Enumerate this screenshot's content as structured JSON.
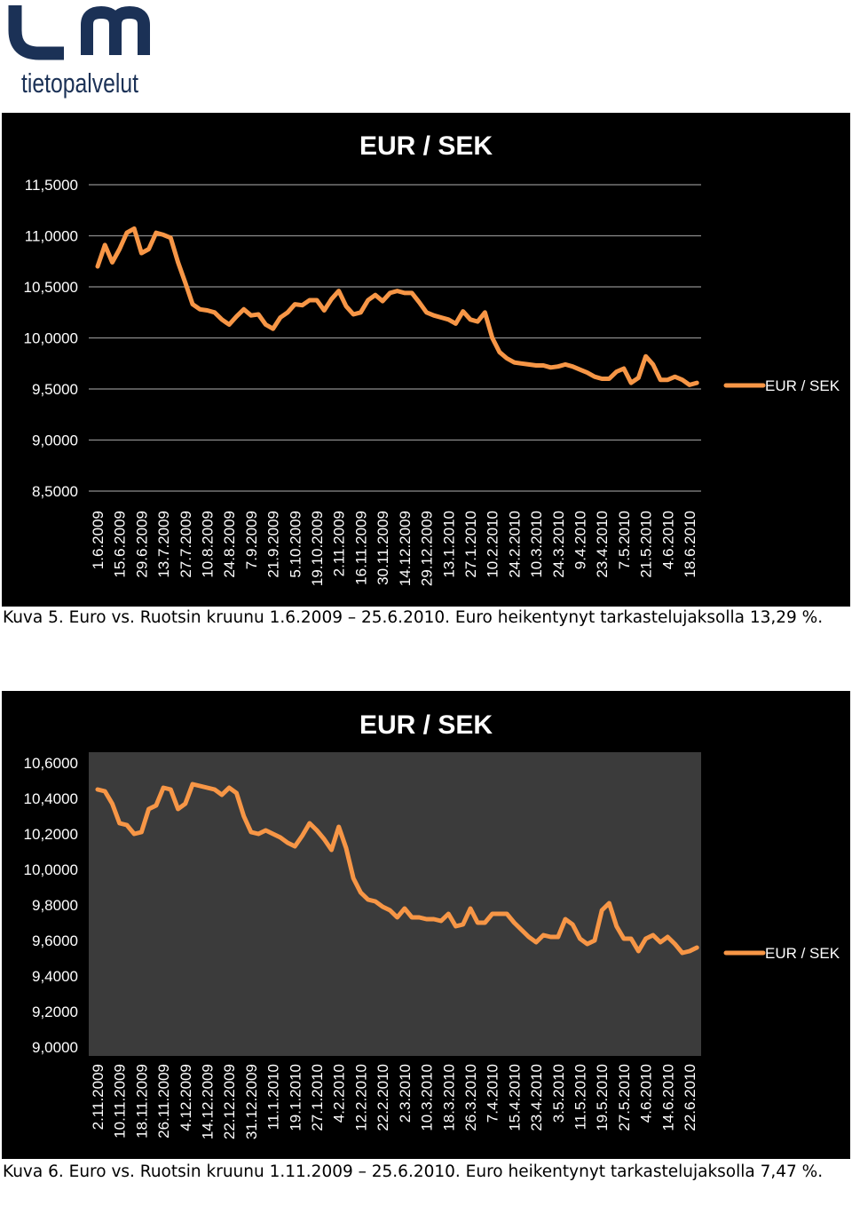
{
  "logo": {
    "text": "tietopalvelut"
  },
  "captions": [
    "Kuva 5. Euro vs. Ruotsin kruunu 1.6.2009 – 25.6.2010. Euro heikentynyt tarkastelujaksolla 13,29 %.",
    "Kuva 6. Euro vs. Ruotsin kruunu 1.11.2009 – 25.6.2010. Euro heikentynyt tarkastelujaksolla 7,47 %."
  ],
  "chart_data": [
    {
      "type": "line",
      "title": "EUR / SEK",
      "grid": true,
      "legend": "right",
      "plot_color": "#000000",
      "categories": [
        "1.6.2009",
        null,
        null,
        "15.6.2009",
        null,
        null,
        "29.6.2009",
        null,
        null,
        "13.7.2009",
        null,
        null,
        "27.7.2009",
        null,
        null,
        "10.8.2009",
        null,
        null,
        "24.8.2009",
        null,
        null,
        "7.9.2009",
        null,
        null,
        "21.9.2009",
        null,
        null,
        "5.10.2009",
        null,
        null,
        "19.10.2009",
        null,
        null,
        "2.11.2009",
        null,
        null,
        "16.11.2009",
        null,
        null,
        "30.11.2009",
        null,
        null,
        "14.12.2009",
        null,
        null,
        "29.12.2009",
        null,
        null,
        "13.1.2010",
        null,
        null,
        "27.1.2010",
        null,
        null,
        "10.2.2010",
        null,
        null,
        "24.2.2010",
        null,
        null,
        "10.3.2010",
        null,
        null,
        "24.3.2010",
        null,
        null,
        "9.4.2010",
        null,
        null,
        "23.4.2010",
        null,
        null,
        "7.5.2010",
        null,
        null,
        "21.5.2010",
        null,
        null,
        "4.6.2010",
        null,
        null,
        "18.6.2010",
        null
      ],
      "series": [
        {
          "name": "EUR / SEK",
          "color": "#f79646",
          "values": [
            10.7,
            10.91,
            10.74,
            10.87,
            11.03,
            11.07,
            10.83,
            10.87,
            11.03,
            11.01,
            10.98,
            10.74,
            10.54,
            10.33,
            10.28,
            10.27,
            10.25,
            10.18,
            10.13,
            10.21,
            10.28,
            10.22,
            10.23,
            10.13,
            10.09,
            10.2,
            10.25,
            10.33,
            10.32,
            10.37,
            10.37,
            10.27,
            10.38,
            10.46,
            10.31,
            10.23,
            10.25,
            10.37,
            10.42,
            10.36,
            10.44,
            10.46,
            10.44,
            10.44,
            10.35,
            10.25,
            10.22,
            10.2,
            10.18,
            10.14,
            10.26,
            10.18,
            10.16,
            10.25,
            10.0,
            9.86,
            9.8,
            9.76,
            9.75,
            9.74,
            9.73,
            9.73,
            9.71,
            9.72,
            9.74,
            9.72,
            9.69,
            9.66,
            9.62,
            9.6,
            9.6,
            9.67,
            9.7,
            9.56,
            9.61,
            9.82,
            9.74,
            9.59,
            9.59,
            9.62,
            9.59,
            9.54,
            9.56
          ]
        }
      ],
      "ylim": [
        8.5,
        11.5
      ],
      "yticks": [
        {
          "value": 8.5,
          "label": "8,5000"
        },
        {
          "value": 9,
          "label": "9,0000"
        },
        {
          "value": 9.5,
          "label": "9,5000"
        },
        {
          "value": 10,
          "label": "10,0000"
        },
        {
          "value": 10.5,
          "label": "10,5000"
        },
        {
          "value": 11,
          "label": "11,0000"
        },
        {
          "value": 11.5,
          "label": "11,5000"
        }
      ]
    },
    {
      "type": "line",
      "title": "EUR / SEK",
      "grid": false,
      "legend": "right",
      "plot_color": "#3b3b3b",
      "categories": [
        "2.11.2009",
        null,
        null,
        "10.11.2009",
        null,
        null,
        "18.11.2009",
        null,
        null,
        "26.11.2009",
        null,
        null,
        "4.12.2009",
        null,
        null,
        "14.12.2009",
        null,
        null,
        "22.12.2009",
        null,
        null,
        "31.12.2009",
        null,
        null,
        "11.1.2010",
        null,
        null,
        "19.1.2010",
        null,
        null,
        "27.1.2010",
        null,
        null,
        "4.2.2010",
        null,
        null,
        "12.2.2010",
        null,
        null,
        "22.2.2010",
        null,
        null,
        "2.3.2010",
        null,
        null,
        "10.3.2010",
        null,
        null,
        "18.3.2010",
        null,
        null,
        "26.3.2010",
        null,
        null,
        "7.4.2010",
        null,
        null,
        "15.4.2010",
        null,
        null,
        "23.4.2010",
        null,
        null,
        "3.5.2010",
        null,
        null,
        "11.5.2010",
        null,
        null,
        "19.5.2010",
        null,
        null,
        "27.5.2010",
        null,
        null,
        "4.6.2010",
        null,
        null,
        "14.6.2010",
        null,
        null,
        "22.6.2010",
        null
      ],
      "series": [
        {
          "name": "EUR / SEK",
          "color": "#f79646",
          "values": [
            10.45,
            10.44,
            10.37,
            10.26,
            10.25,
            10.2,
            10.21,
            10.34,
            10.36,
            10.46,
            10.45,
            10.34,
            10.37,
            10.48,
            10.47,
            10.46,
            10.45,
            10.42,
            10.46,
            10.43,
            10.3,
            10.21,
            10.2,
            10.22,
            10.2,
            10.18,
            10.15,
            10.13,
            10.19,
            10.26,
            10.22,
            10.17,
            10.11,
            10.24,
            10.12,
            9.95,
            9.87,
            9.83,
            9.82,
            9.79,
            9.77,
            9.73,
            9.78,
            9.73,
            9.73,
            9.72,
            9.72,
            9.71,
            9.75,
            9.68,
            9.69,
            9.78,
            9.7,
            9.7,
            9.75,
            9.75,
            9.75,
            9.7,
            9.66,
            9.62,
            9.59,
            9.63,
            9.62,
            9.62,
            9.72,
            9.69,
            9.61,
            9.58,
            9.6,
            9.77,
            9.81,
            9.68,
            9.61,
            9.61,
            9.54,
            9.61,
            9.63,
            9.59,
            9.62,
            9.58,
            9.53,
            9.54,
            9.56
          ]
        }
      ],
      "ylim": [
        9,
        10.6
      ],
      "yticks": [
        {
          "value": 9,
          "label": "9,0000"
        },
        {
          "value": 9.2,
          "label": "9,2000"
        },
        {
          "value": 9.4,
          "label": "9,4000"
        },
        {
          "value": 9.6,
          "label": "9,6000"
        },
        {
          "value": 9.8,
          "label": "9,8000"
        },
        {
          "value": 10,
          "label": "10,0000"
        },
        {
          "value": 10.2,
          "label": "10,2000"
        },
        {
          "value": 10.4,
          "label": "10,4000"
        },
        {
          "value": 10.6,
          "label": "10,6000"
        }
      ]
    }
  ]
}
